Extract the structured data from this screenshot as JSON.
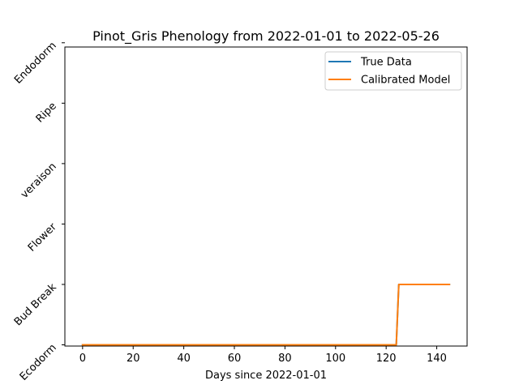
{
  "chart_data": {
    "type": "line",
    "title": "Pinot_Gris Phenology from 2022-01-01 to 2022-05-26",
    "xlabel": "Days since 2022-01-01",
    "ylabel": "",
    "xlim": [
      -7,
      152
    ],
    "ylim": [
      -0.02,
      4.93
    ],
    "x_ticks": [
      0,
      20,
      40,
      60,
      80,
      100,
      120,
      140
    ],
    "y_ticks": [
      0,
      1,
      2,
      3,
      4,
      5
    ],
    "y_tick_labels": [
      "Ecodorm",
      "Bud Break",
      "Flower",
      "veraison",
      "Ripe",
      "Endodorm"
    ],
    "legend_position": "upper-right",
    "series": [
      {
        "name": "True Data",
        "color": "#1f77b4",
        "x": [
          0,
          124,
          125,
          145
        ],
        "y": [
          0,
          0,
          1,
          1
        ]
      },
      {
        "name": "Calibrated Model",
        "color": "#ff7f0e",
        "x": [
          0,
          124,
          125,
          145
        ],
        "y": [
          0,
          0,
          1,
          1
        ]
      }
    ]
  }
}
